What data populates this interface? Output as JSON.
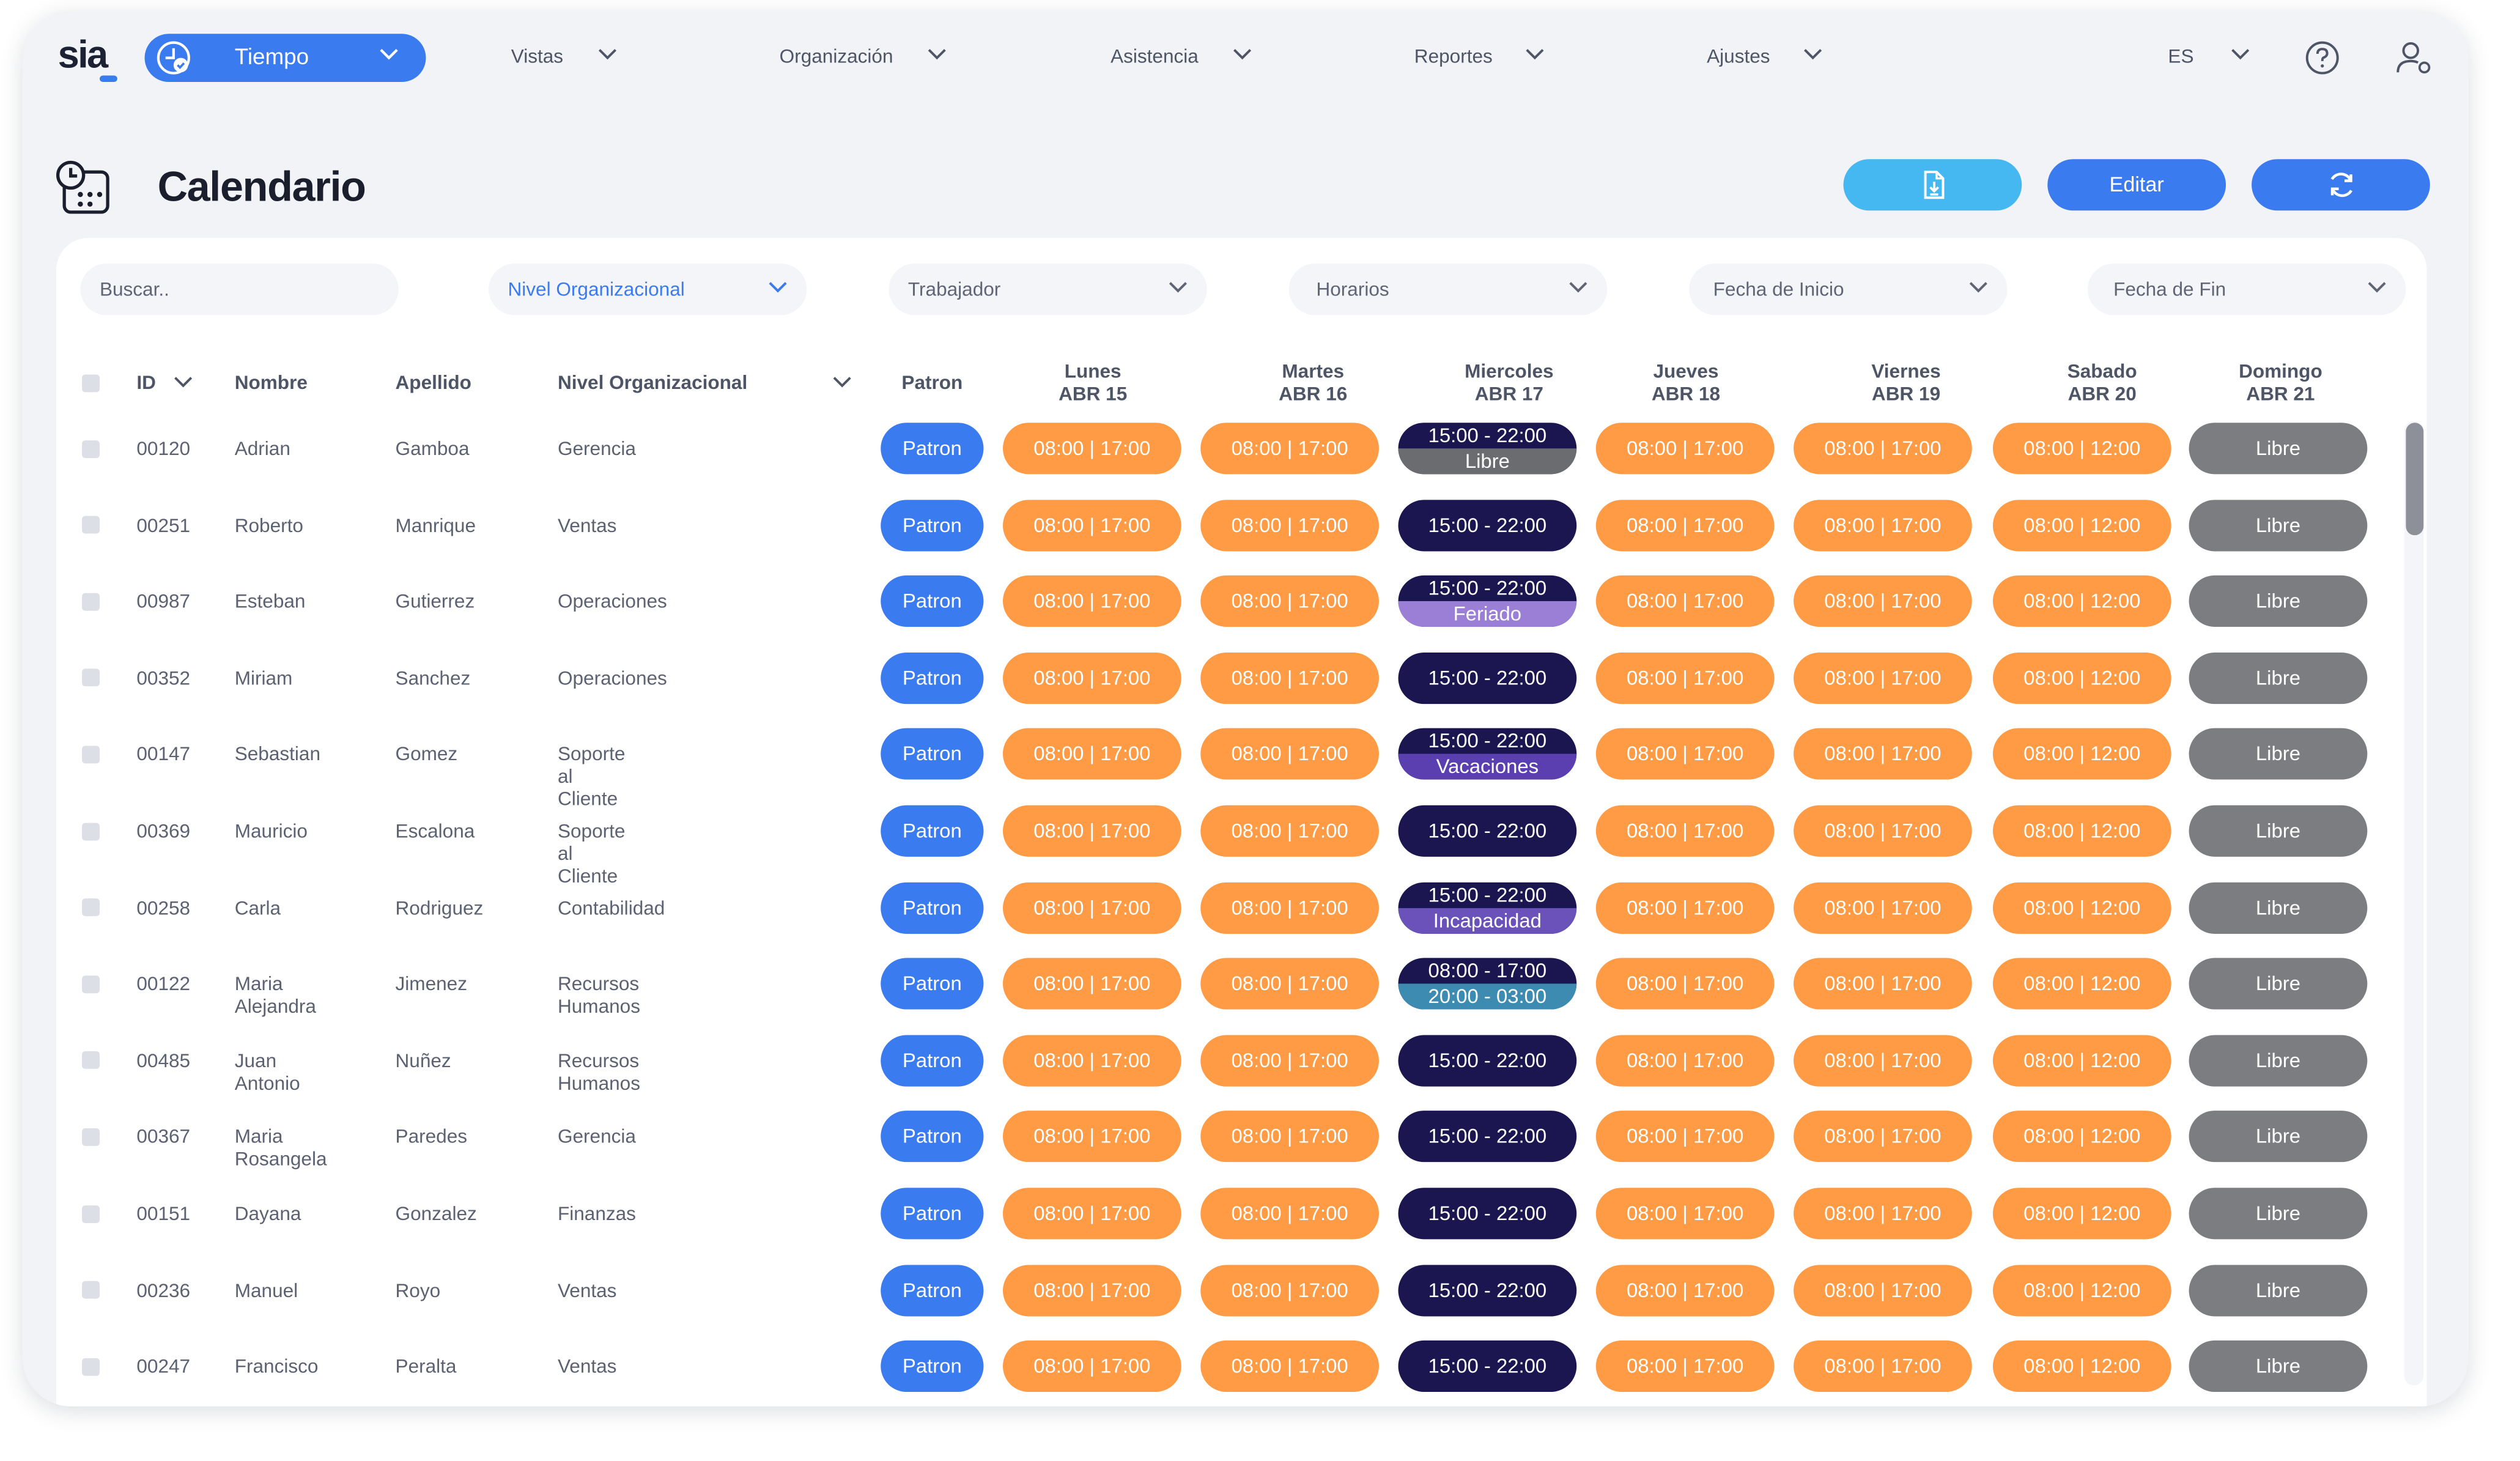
{
  "brand": {
    "logo_text": "sia"
  },
  "topbar": {
    "module_label": "Tiempo",
    "nav": [
      "Vistas",
      "Organización",
      "Asistencia",
      "Reportes",
      "Ajustes"
    ],
    "language": "ES"
  },
  "page": {
    "title": "Calendario"
  },
  "actions": {
    "edit_label": "Editar"
  },
  "filters": {
    "search_placeholder": "Buscar..",
    "items": [
      "Nivel Organizacional",
      "Trabajador",
      "Horarios",
      "Fecha de Inicio",
      "Fecha de Fin"
    ]
  },
  "columns": {
    "id": "ID",
    "name": "Nombre",
    "lastname": "Apellido",
    "org": "Nivel Organizacional",
    "pattern": "Patron",
    "days": [
      {
        "day": "Lunes",
        "date": "ABR 15"
      },
      {
        "day": "Martes",
        "date": "ABR 16"
      },
      {
        "day": "Miercoles",
        "date": "ABR 17"
      },
      {
        "day": "Jueves",
        "date": "ABR 18"
      },
      {
        "day": "Viernes",
        "date": "ABR 19"
      },
      {
        "day": "Sabado",
        "date": "ABR 20"
      },
      {
        "day": "Domingo",
        "date": "ABR 21"
      }
    ]
  },
  "shifts": {
    "pattern_label": "Patron",
    "weekday": "08:00 | 17:00",
    "saturday": "08:00 | 12:00",
    "sunday": "Libre",
    "wednesday": "15:00 - 22:00"
  },
  "rows": [
    {
      "id": "00120",
      "name": "Adrian",
      "lastname": "Gamboa",
      "org": "Gerencia",
      "wed_sub": "Libre"
    },
    {
      "id": "00251",
      "name": "Roberto",
      "lastname": "Manrique",
      "org": "Ventas"
    },
    {
      "id": "00987",
      "name": "Esteban",
      "lastname": "Gutierrez",
      "org": "Operaciones",
      "wed_sub": "Feriado"
    },
    {
      "id": "00352",
      "name": "Miriam",
      "lastname": "Sanchez",
      "org": "Operaciones"
    },
    {
      "id": "00147",
      "name": "Sebastian",
      "lastname": "Gomez",
      "org": "Soporte al Cliente",
      "wed_sub": "Vacaciones"
    },
    {
      "id": "00369",
      "name": "Mauricio",
      "lastname": "Escalona",
      "org": "Soporte al Cliente"
    },
    {
      "id": "00258",
      "name": "Carla",
      "lastname": "Rodriguez",
      "org": "Contabilidad",
      "wed_sub": "Incapacidad"
    },
    {
      "id": "00122",
      "name": "Maria Alejandra",
      "lastname": "Jimenez",
      "org": "Recursos Humanos",
      "wed_top": "08:00 - 17:00",
      "wed_sub": "20:00 - 03:00"
    },
    {
      "id": "00485",
      "name": "Juan Antonio",
      "lastname": "Nuñez",
      "org": "Recursos Humanos"
    },
    {
      "id": "00367",
      "name": "Maria Rosangela",
      "lastname": "Paredes",
      "org": "Gerencia"
    },
    {
      "id": "00151",
      "name": "Dayana",
      "lastname": "Gonzalez",
      "org": "Finanzas"
    },
    {
      "id": "00236",
      "name": "Manuel",
      "lastname": "Royo",
      "org": "Ventas"
    },
    {
      "id": "00247",
      "name": "Francisco",
      "lastname": "Peralta",
      "org": "Ventas"
    }
  ],
  "colors": {
    "primary": "#3b7bf0",
    "export": "#45b7f1",
    "weekday_shift": "#ff9b45",
    "evening_shift": "#1b1650",
    "free": "#7c7d80",
    "libre_sub": "#6b6c70",
    "feriado_sub": "#9b7ed6",
    "vacaciones_sub": "#5b3fb0",
    "incapacidad_sub": "#6b52ba",
    "second_shift_sub": "#3d8bb0"
  },
  "icons": [
    "clock-check-icon",
    "chevron-down-icon",
    "help-icon",
    "user-settings-icon",
    "calendar-clock-icon",
    "file-download-icon",
    "refresh-icon",
    "sort-chevron-icon"
  ]
}
